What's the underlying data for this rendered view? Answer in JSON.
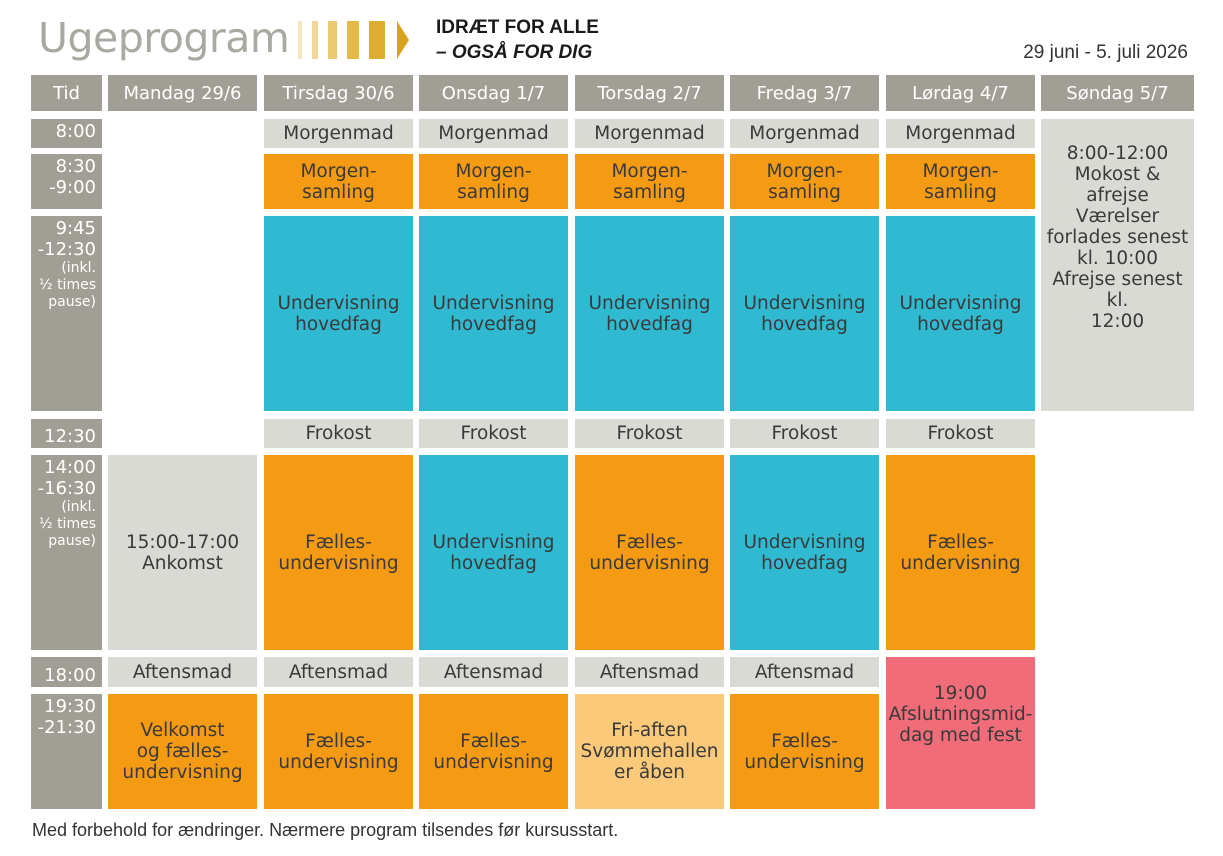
{
  "header": {
    "title": "Ugeprogram",
    "brand_line1": "IDRÆT FOR ALLE",
    "brand_line2": "– OGSÅ FOR DIG",
    "date_range": "29 juni - 5. juli 2026"
  },
  "columns": {
    "time": "Tid",
    "mon": "Mandag 29/6",
    "tue": "Tirsdag 30/6",
    "wed": "Onsdag 1/7",
    "thu": "Torsdag 2/7",
    "fri": "Fredag 3/7",
    "sat": "Lørdag 4/7",
    "sun": "Søndag 5/7"
  },
  "times": {
    "t1": "8:00",
    "t2": "8:30\n-9:00",
    "t3_main": "9:45\n-12:30",
    "t3_note": "(inkl.\n½ times\npause)",
    "t4": "12:30",
    "t5_main": "14:00\n-16:30",
    "t5_note": "(inkl.\n½ times\npause)",
    "t6": "18:00",
    "t7": "19:30\n-21:30"
  },
  "activities": {
    "breakfast": "Morgenmad",
    "morning_assembly": "Morgen-\nsamling",
    "main_subject": "Undervisning\nhovedfag",
    "lunch": "Frokost",
    "joint_teaching": "Fælles-\nundervisning",
    "dinner": "Aftensmad",
    "arrival": "15:00-17:00\nAnkomst",
    "welcome": "Velkomst\nog fælles-\nundervisning",
    "free_evening": "Fri-aften\nSvømmehallen\ner åben",
    "farewell_dinner": "19:00\nAfslutningsmid-\ndag med fest",
    "sunday_departure": "8:00-12:00\nMokost &\nafrejse\nVærelser\nforlades senest\nkl. 10:00\nAfrejse senest kl.\n12:00"
  },
  "colors": {
    "gray_header": "#a19f95",
    "gray_cell": "#dadad4",
    "orange": "#f59a13",
    "blue": "#2fbad1",
    "peach": "#fbc97a",
    "pink": "#f06c79"
  },
  "footer": "Med forbehold for ændringer. Nærmere program tilsendes før kursusstart."
}
